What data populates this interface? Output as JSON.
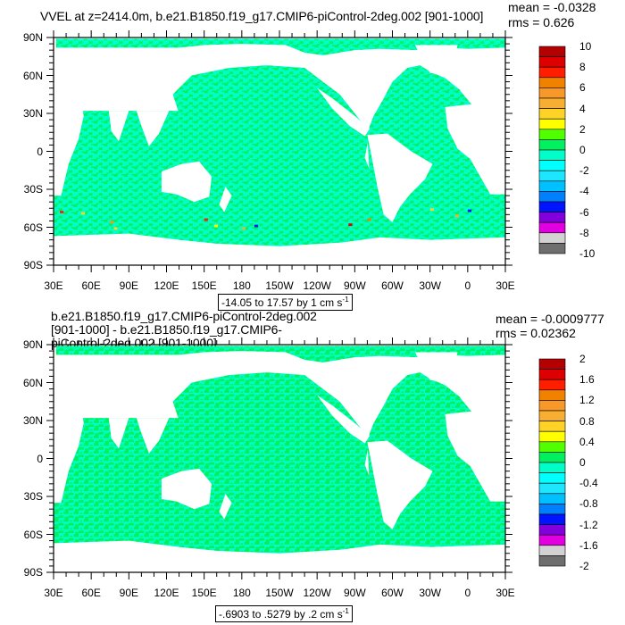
{
  "panels": [
    {
      "title": "VVEL at z=2414.0m, b.e21.B1850.f19_g17.CMIP6-piControl-2deg.002 [901-1000]",
      "mean": "mean = -0.0328",
      "rms": "rms = 0.626",
      "info": "-14.05 to 17.57 by 1 cm s",
      "info_sup": "-1",
      "colorbar_labels": [
        "10",
        "8",
        "6",
        "4",
        "2",
        "0",
        "-2",
        "-4",
        "-6",
        "-8",
        "-10"
      ]
    },
    {
      "title": "b.e21.B1850.f19_g17.CMIP6-piControl-2deg.002 [901-1000] - b.e21.B1850.f19_g17.CMIP6-piControl-2deg.002 [901-1000]",
      "mean": "mean = -0.0009777",
      "rms": "rms = 0.02362",
      "info": "-.6903 to .5279 by .2 cm s",
      "info_sup": "-1",
      "colorbar_labels": [
        "2",
        "1.6",
        "1.2",
        "0.8",
        "0.4",
        "0",
        "-0.4",
        "-0.8",
        "-1.2",
        "-1.6",
        "-2"
      ]
    }
  ],
  "chart_data": [
    {
      "type": "heatmap",
      "title": "VVEL at z=2414.0m, b.e21.B1850.f19_g17.CMIP6-piControl-2deg.002 [901-1000]",
      "units": "cm s-1",
      "mean": -0.0328,
      "rms": 0.626,
      "data_min": -14.05,
      "data_max": 17.57,
      "contour_interval": 1,
      "levels": [
        -10,
        -9,
        -8,
        -7,
        -6,
        -5,
        -4,
        -3,
        -2,
        -1,
        0,
        1,
        2,
        3,
        4,
        5,
        6,
        7,
        8,
        9,
        10
      ],
      "xlim": [
        30,
        390
      ],
      "ylim": [
        -90,
        90
      ],
      "x_tick_labels": [
        "30E",
        "60E",
        "90E",
        "120E",
        "150E",
        "180",
        "150W",
        "120W",
        "90W",
        "60W",
        "30W",
        "0",
        "30E"
      ],
      "y_tick_labels": [
        "90N",
        "60N",
        "30N",
        "0",
        "30S",
        "60S",
        "90S"
      ],
      "legend": "right"
    },
    {
      "type": "heatmap",
      "title": "b.e21.B1850.f19_g17.CMIP6-piControl-2deg.002 [901-1000] - b.e21.B1850.f19_g17.CMIP6-piControl-2deg.002 [901-1000]",
      "units": "cm s-1",
      "mean": -0.0009777,
      "rms": 0.02362,
      "data_min": -0.6903,
      "data_max": 0.5279,
      "contour_interval": 0.2,
      "levels": [
        -2,
        -1.8,
        -1.6,
        -1.4,
        -1.2,
        -1,
        -0.8,
        -0.6,
        -0.4,
        -0.2,
        0,
        0.2,
        0.4,
        0.6,
        0.8,
        1,
        1.2,
        1.4,
        1.6,
        1.8,
        2
      ],
      "xlim": [
        30,
        390
      ],
      "ylim": [
        -90,
        90
      ],
      "x_tick_labels": [
        "30E",
        "60E",
        "90E",
        "120E",
        "150E",
        "180",
        "150W",
        "120W",
        "90W",
        "60W",
        "30W",
        "0",
        "30E"
      ],
      "y_tick_labels": [
        "90N",
        "60N",
        "30N",
        "0",
        "30S",
        "60S",
        "90S"
      ],
      "legend": "right"
    }
  ],
  "colors": {
    "palette": [
      "#b40000",
      "#dc0000",
      "#ff1e00",
      "#f08200",
      "#f89828",
      "#f8ae30",
      "#ffd228",
      "#ffff00",
      "#50ff00",
      "#00f060",
      "#00ffc8",
      "#00ffff",
      "#1ee6ff",
      "#00c0ff",
      "#0080ff",
      "#0014ff",
      "#8200dc",
      "#e000e0",
      "#d2d2d2",
      "#6e6e6e"
    ],
    "ocean_a": "#00f060",
    "ocean_b": "#00ffc8"
  }
}
